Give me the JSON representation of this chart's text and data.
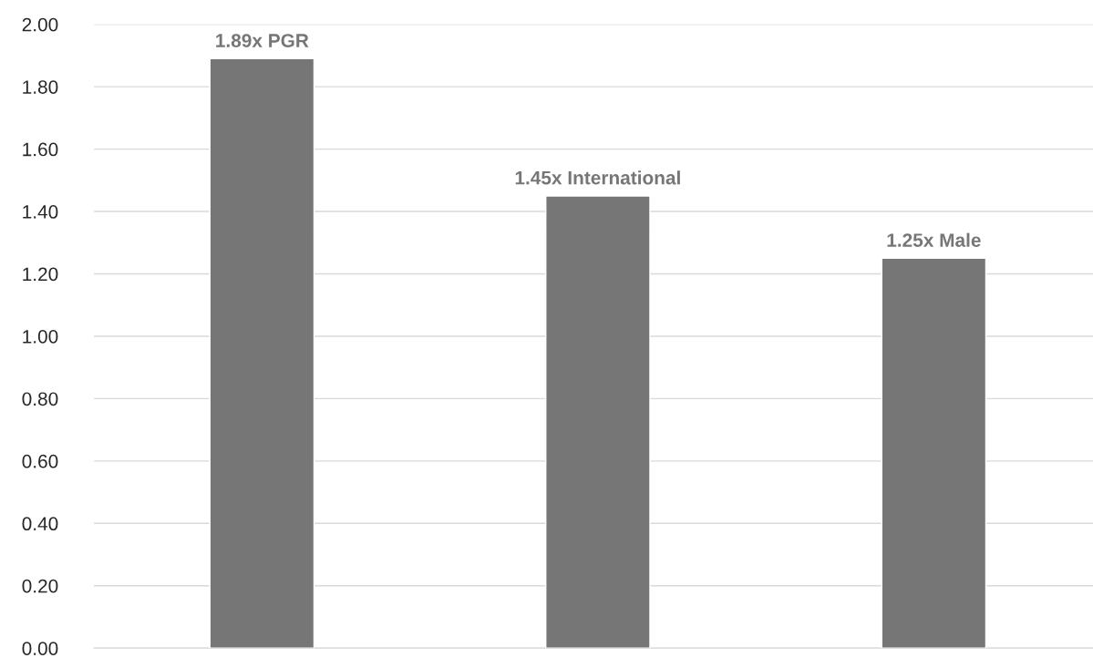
{
  "chart_data": {
    "type": "bar",
    "categories": [
      null,
      null,
      null
    ],
    "values": [
      1.89,
      1.45,
      1.25
    ],
    "value_labels": [
      "1.89x PGR",
      "1.45x International",
      "1.25x Male"
    ],
    "color": "#767676",
    "ylim": [
      0,
      2
    ],
    "yticks": [
      {
        "value": 0,
        "label": "0.00"
      },
      {
        "value": 0.2,
        "label": "0.20"
      },
      {
        "value": 0.4,
        "label": "0.40"
      },
      {
        "value": 0.6,
        "label": "0.60"
      },
      {
        "value": 0.8,
        "label": "0.80"
      },
      {
        "value": 1.0,
        "label": "1.00"
      },
      {
        "value": 1.2,
        "label": "1.20"
      },
      {
        "value": 1.4,
        "label": "1.40"
      },
      {
        "value": 1.6,
        "label": "1.60"
      },
      {
        "value": 1.8,
        "label": "1.80"
      },
      {
        "value": 2.0,
        "label": "2.00"
      }
    ],
    "grid": "y",
    "tick_labels": "y"
  }
}
